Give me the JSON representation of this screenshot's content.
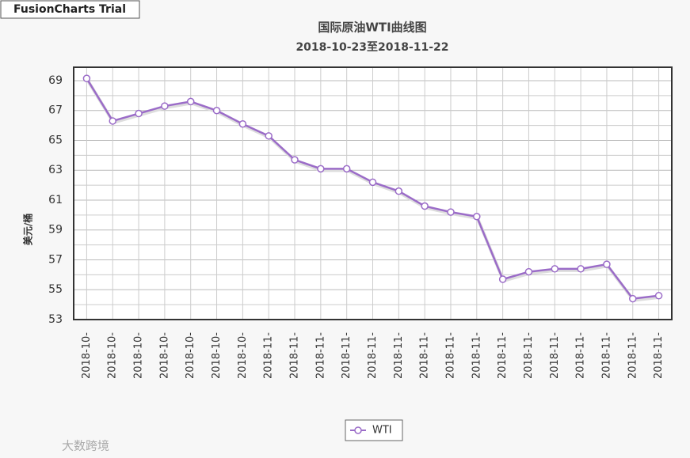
{
  "badge": "FusionCharts Trial",
  "watermark": "大数跨境",
  "chart_data": {
    "type": "line",
    "title": "国际原油WTI曲线图",
    "subtitle": "2018-10-23至2018-11-22",
    "y_label": "美元/桶",
    "categories": [
      "2018-10-",
      "2018-10-",
      "2018-10-",
      "2018-10-",
      "2018-10-",
      "2018-10-",
      "2018-10-",
      "2018-11-",
      "2018-11-",
      "2018-11-",
      "2018-11-",
      "2018-11-",
      "2018-11-",
      "2018-11-",
      "2018-11-",
      "2018-11-",
      "2018-11-",
      "2018-11-",
      "2018-11-",
      "2018-11-",
      "2018-11-",
      "2018-11-",
      "2018-11-"
    ],
    "series": [
      {
        "name": "WTI",
        "color": "#9b6cc8",
        "values": [
          69.15,
          66.3,
          66.8,
          67.3,
          67.6,
          67.0,
          66.1,
          65.3,
          63.7,
          63.1,
          63.1,
          62.2,
          61.6,
          60.6,
          60.2,
          59.9,
          55.7,
          56.2,
          56.4,
          56.4,
          56.7,
          54.4,
          54.6
        ]
      }
    ],
    "ylim": [
      53,
      69.9
    ],
    "yticks": [
      53,
      55,
      57,
      59,
      61,
      63,
      65,
      67,
      69
    ],
    "minor_yticks": [
      54,
      56,
      58,
      60,
      62,
      64,
      66,
      68
    ],
    "grid": true,
    "legend": "bottom"
  }
}
